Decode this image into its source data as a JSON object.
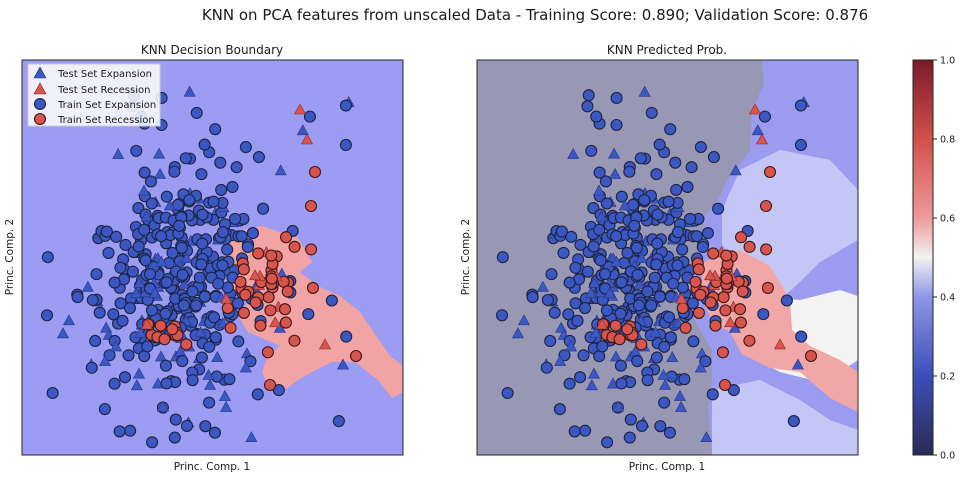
{
  "figure": {
    "suptitle": "KNN on PCA features from unscaled Data - Training Score: 0.890; Validation Score: 0.876"
  },
  "chart_data": [
    {
      "type": "scatter",
      "title": "KNN Decision Boundary",
      "xlabel": "Princ. Comp. 1",
      "ylabel": "Princ. Comp. 2",
      "xticks_visible": false,
      "yticks_visible": false,
      "xlim": [
        0,
        100
      ],
      "ylim": [
        0,
        100
      ],
      "background_color": "#9c9cf2",
      "region_color": "#f2a3a3",
      "legend": {
        "position": "upper-left",
        "entries": [
          "Test Set Expansion",
          "Test Set Recession",
          "Train Set Expansion",
          "Train Set Recession"
        ]
      },
      "colors": {
        "expansion": "#3b57c4",
        "recession": "#d9544d"
      }
    },
    {
      "type": "heatmap",
      "title": "KNN Predicted Prob.",
      "xlabel": "Princ. Comp. 1",
      "ylabel": "Princ. Comp. 2",
      "xticks_visible": false,
      "yticks_visible": false,
      "xlim": [
        0,
        100
      ],
      "ylim": [
        0,
        100
      ],
      "colorbar": {
        "range": [
          0.0,
          1.0
        ],
        "ticks": [
          "0.0",
          "0.2",
          "0.4",
          "0.6",
          "0.8",
          "1.0"
        ]
      }
    }
  ],
  "legend_labels": {
    "test_exp": "Test Set Expansion",
    "test_rec": "Test Set Recession",
    "train_exp": "Train Set Expansion",
    "train_rec": "Train Set Recession"
  }
}
